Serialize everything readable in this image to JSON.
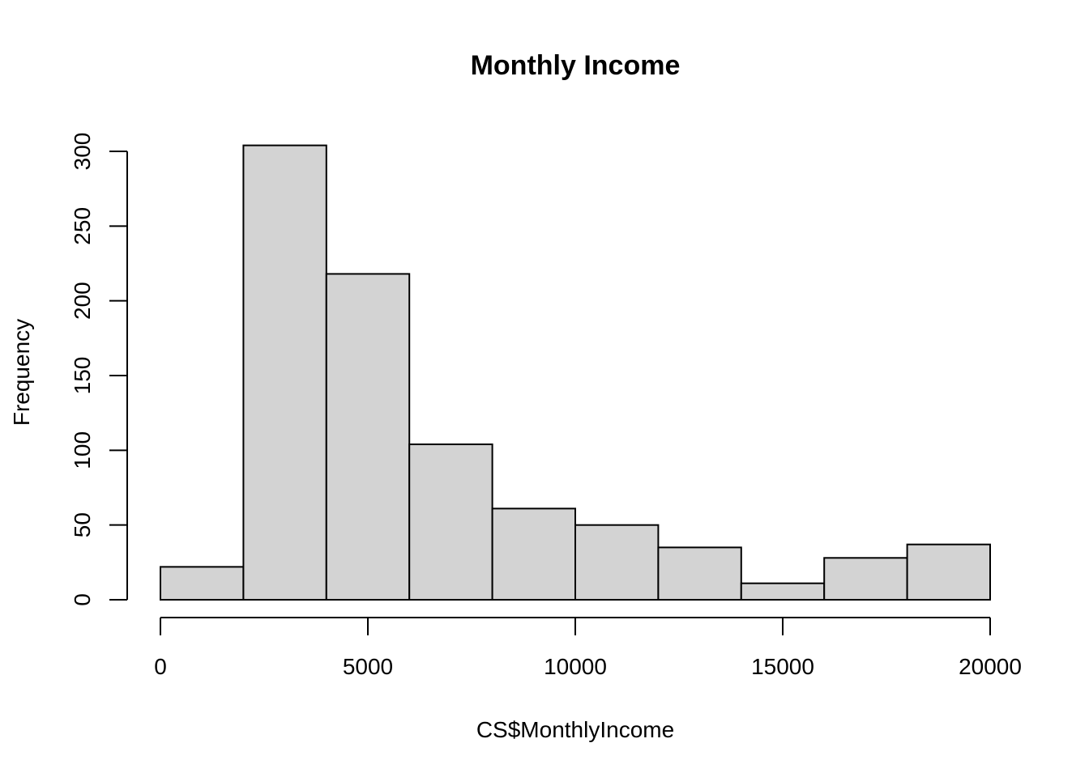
{
  "chart_data": {
    "type": "histogram",
    "title": "Monthly Income",
    "x_label": "CS$MonthlyIncome",
    "y_label": "Frequency",
    "bins": [
      0,
      2000,
      4000,
      6000,
      8000,
      10000,
      12000,
      14000,
      16000,
      18000,
      20000
    ],
    "values": [
      22,
      304,
      218,
      104,
      61,
      50,
      35,
      11,
      28,
      37
    ],
    "color": "#d3d3d3",
    "xlim": [
      0,
      20000
    ],
    "xticks": [
      0,
      5000,
      10000,
      15000,
      20000
    ],
    "ylim": [
      0,
      300
    ],
    "yticks": [
      0,
      50,
      100,
      150,
      200,
      250,
      300
    ]
  }
}
